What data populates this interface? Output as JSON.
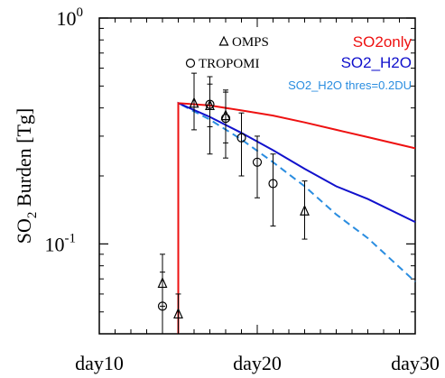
{
  "chart_data": {
    "type": "line",
    "ylabel": "SO",
    "ylabel_sub": "2",
    "ylabel_rest": " Burden [Tg]",
    "y_scale": "log",
    "xlim": [
      10,
      30
    ],
    "ylim": [
      0.04,
      1.0
    ],
    "x_ticks": [
      {
        "value": 10,
        "label": "day10"
      },
      {
        "value": 20,
        "label": "day20"
      },
      {
        "value": 30,
        "label": "day30"
      }
    ],
    "y_ticks": [
      {
        "value": 1.0,
        "base": "10",
        "exp": "0"
      },
      {
        "value": 0.1,
        "base": "10",
        "exp": "-1"
      }
    ],
    "grid": false,
    "legend_position": "top-right",
    "series": [
      {
        "name": "SO2only",
        "color": "#ee1111",
        "style": "solid",
        "points": [
          [
            15,
            0.04
          ],
          [
            15,
            0.42
          ],
          [
            17,
            0.41
          ],
          [
            19,
            0.39
          ],
          [
            21,
            0.37
          ],
          [
            23,
            0.345
          ],
          [
            25,
            0.32
          ],
          [
            27,
            0.297
          ],
          [
            30,
            0.265
          ]
        ]
      },
      {
        "name": "SO2_H2O",
        "color": "#1111cc",
        "style": "solid",
        "points": [
          [
            15,
            0.04
          ],
          [
            15,
            0.42
          ],
          [
            17,
            0.365
          ],
          [
            19,
            0.31
          ],
          [
            21,
            0.26
          ],
          [
            23,
            0.215
          ],
          [
            25,
            0.18
          ],
          [
            27,
            0.158
          ],
          [
            30,
            0.125
          ]
        ]
      },
      {
        "name": "SO2_H2O thres=0.2DU",
        "color": "#2a8de0",
        "style": "dashed",
        "points": [
          [
            15,
            0.04
          ],
          [
            15,
            0.42
          ],
          [
            17,
            0.355
          ],
          [
            19,
            0.29
          ],
          [
            21,
            0.23
          ],
          [
            23,
            0.18
          ],
          [
            25,
            0.135
          ],
          [
            27,
            0.106
          ],
          [
            30,
            0.068
          ]
        ]
      }
    ],
    "observations": [
      {
        "name": "OMPS",
        "marker": "triangle",
        "points": [
          {
            "x": 14,
            "y": 0.067,
            "lo": 0.053,
            "hi": 0.09
          },
          {
            "x": 15,
            "y": 0.049,
            "lo": 0.04,
            "hi": 0.06
          },
          {
            "x": 16,
            "y": 0.42,
            "lo": 0.32,
            "hi": 0.57
          },
          {
            "x": 17,
            "y": 0.41,
            "lo": 0.33,
            "hi": 0.55
          },
          {
            "x": 18,
            "y": 0.37,
            "lo": 0.28,
            "hi": 0.48
          },
          {
            "x": 23,
            "y": 0.14,
            "lo": 0.105,
            "hi": 0.19
          }
        ]
      },
      {
        "name": "TROPOMI",
        "marker": "circle",
        "points": [
          {
            "x": 14,
            "y": 0.053,
            "lo": 0.04,
            "hi": 0.075
          },
          {
            "x": 17,
            "y": 0.415,
            "lo": 0.25,
            "hi": 0.51
          },
          {
            "x": 18,
            "y": 0.36,
            "lo": 0.24,
            "hi": 0.47
          },
          {
            "x": 19,
            "y": 0.295,
            "lo": 0.2,
            "hi": 0.38
          },
          {
            "x": 20,
            "y": 0.23,
            "lo": 0.16,
            "hi": 0.3
          },
          {
            "x": 21,
            "y": 0.185,
            "lo": 0.12,
            "hi": 0.25
          }
        ]
      }
    ]
  }
}
